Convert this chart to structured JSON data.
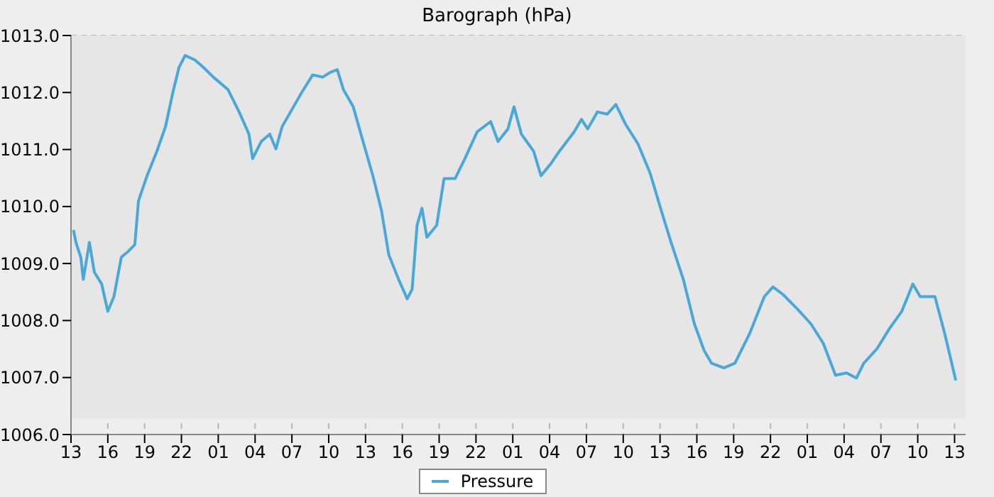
{
  "chart_data": {
    "type": "line",
    "title": "Barograph (hPa)",
    "x": [
      "--01-01T13:12",
      "--01-01T13:24",
      "--01-01T13:48",
      "--01-01T14:00",
      "--01-01T14:30",
      "--01-01T14:54",
      "--01-01T15:30",
      "--01-01T16:00",
      "--01-01T16:30",
      "--01-01T17:06",
      "--01-01T17:36",
      "--01-01T18:12",
      "--01-01T18:30",
      "--01-01T19:12",
      "--01-01T20:00",
      "--01-01T20:42",
      "--01-01T21:18",
      "--01-01T21:48",
      "--01-01T22:18",
      "--01-01T23:06",
      "--01-01T23:48",
      "--01-02T00:36",
      "--01-02T01:48",
      "--01-02T02:42",
      "--01-02T03:30",
      "--01-02T03:48",
      "--01-02T04:30",
      "--01-02T05:12",
      "--01-02T05:42",
      "--01-02T06:12",
      "--01-02T07:00",
      "--01-02T07:48",
      "--01-02T08:42",
      "--01-02T09:30",
      "--01-02T10:06",
      "--01-02T10:42",
      "--01-02T11:12",
      "--01-02T12:00",
      "--01-02T12:48",
      "--01-02T13:36",
      "--01-02T14:18",
      "--01-02T14:54",
      "--01-02T15:42",
      "--01-02T16:24",
      "--01-02T16:48",
      "--01-02T17:12",
      "--01-02T17:36",
      "--01-02T18:00",
      "--01-02T18:48",
      "--01-02T19:24",
      "--01-02T20:18",
      "--01-02T21:06",
      "--01-02T22:06",
      "--01-02T23:12",
      "--01-02T23:48",
      "--01-03T00:36",
      "--01-03T01:06",
      "--01-03T01:42",
      "--01-03T02:42",
      "--01-03T03:18",
      "--01-03T04:06",
      "--01-03T04:48",
      "--01-03T06:00",
      "--01-03T06:36",
      "--01-03T07:06",
      "--01-03T07:54",
      "--01-03T08:42",
      "--01-03T09:24",
      "--01-03T10:12",
      "--01-03T11:12",
      "--01-03T12:12",
      "--01-03T13:06",
      "--01-03T13:54",
      "--01-03T14:54",
      "--01-03T15:48",
      "--01-03T16:36",
      "--01-03T17:12",
      "--01-03T18:12",
      "--01-03T19:06",
      "--01-03T20:18",
      "--01-03T21:30",
      "--01-03T22:12",
      "--01-03T23:00",
      "--01-04T00:12",
      "--01-04T01:18",
      "--01-04T02:18",
      "--01-04T03:18",
      "--01-04T04:12",
      "--01-04T05:00",
      "--01-04T05:36",
      "--01-04T06:42",
      "--01-04T07:42",
      "--01-04T08:42",
      "--01-04T09:36",
      "--01-04T10:12",
      "--01-04T11:24",
      "--01-04T12:12",
      "--01-04T13:06"
    ],
    "series": [
      {
        "name": "Pressure",
        "color": "#4aa8d8",
        "values": [
          1009.59,
          1009.37,
          1009.11,
          1008.72,
          1009.37,
          1008.85,
          1008.64,
          1008.16,
          1008.42,
          1009.11,
          1009.2,
          1009.33,
          1010.1,
          1010.54,
          1010.97,
          1011.4,
          1012.0,
          1012.44,
          1012.65,
          1012.57,
          1012.44,
          1012.27,
          1012.05,
          1011.66,
          1011.27,
          1010.84,
          1011.14,
          1011.27,
          1011.01,
          1011.4,
          1011.7,
          1012.0,
          1012.31,
          1012.27,
          1012.35,
          1012.4,
          1012.05,
          1011.75,
          1011.14,
          1010.54,
          1009.93,
          1009.15,
          1008.72,
          1008.38,
          1008.55,
          1009.67,
          1009.97,
          1009.46,
          1009.67,
          1010.49,
          1010.49,
          1010.84,
          1011.31,
          1011.49,
          1011.14,
          1011.36,
          1011.75,
          1011.27,
          1010.97,
          1010.54,
          1010.75,
          1010.97,
          1011.31,
          1011.53,
          1011.36,
          1011.66,
          1011.62,
          1011.79,
          1011.44,
          1011.1,
          1010.58,
          1009.93,
          1009.37,
          1008.72,
          1007.94,
          1007.47,
          1007.25,
          1007.17,
          1007.25,
          1007.77,
          1008.42,
          1008.59,
          1008.46,
          1008.2,
          1007.94,
          1007.6,
          1007.04,
          1007.08,
          1006.99,
          1007.25,
          1007.51,
          1007.86,
          1008.16,
          1008.64,
          1008.42,
          1008.42,
          1007.77,
          1006.95
        ]
      }
    ],
    "xlim": [
      "--01-01T13:00",
      "--01-04T13:54"
    ],
    "xticks": [
      {
        "value": "--01-01T13:00",
        "label": "13"
      },
      {
        "value": "--01-01T16:00",
        "label": "16"
      },
      {
        "value": "--01-01T19:00",
        "label": "19"
      },
      {
        "value": "--01-01T22:00",
        "label": "22"
      },
      {
        "value": "--01-02T01:00",
        "label": "01"
      },
      {
        "value": "--01-02T04:00",
        "label": "04"
      },
      {
        "value": "--01-02T07:00",
        "label": "07"
      },
      {
        "value": "--01-02T10:00",
        "label": "10"
      },
      {
        "value": "--01-02T13:00",
        "label": "13"
      },
      {
        "value": "--01-02T16:00",
        "label": "16"
      },
      {
        "value": "--01-02T19:00",
        "label": "19"
      },
      {
        "value": "--01-02T22:00",
        "label": "22"
      },
      {
        "value": "--01-03T01:00",
        "label": "01"
      },
      {
        "value": "--01-03T04:00",
        "label": "04"
      },
      {
        "value": "--01-03T07:00",
        "label": "07"
      },
      {
        "value": "--01-03T10:00",
        "label": "10"
      },
      {
        "value": "--01-03T13:00",
        "label": "13"
      },
      {
        "value": "--01-03T16:00",
        "label": "16"
      },
      {
        "value": "--01-03T19:00",
        "label": "19"
      },
      {
        "value": "--01-03T22:00",
        "label": "22"
      },
      {
        "value": "--01-04T01:00",
        "label": "01"
      },
      {
        "value": "--01-04T04:00",
        "label": "04"
      },
      {
        "value": "--01-04T07:00",
        "label": "07"
      },
      {
        "value": "--01-04T10:00",
        "label": "10"
      },
      {
        "value": "--01-04T13:00",
        "label": "13"
      }
    ],
    "ylim": [
      1006,
      1013
    ],
    "yticks": [
      {
        "value": 1006,
        "label": "1006.0"
      },
      {
        "value": 1007,
        "label": "1007.0"
      },
      {
        "value": 1008,
        "label": "1008.0"
      },
      {
        "value": 1009,
        "label": "1009.0"
      },
      {
        "value": 1010,
        "label": "1010.0"
      },
      {
        "value": 1011,
        "label": "1011.0"
      },
      {
        "value": 1012,
        "label": "1012.0"
      },
      {
        "value": 1013,
        "label": "1013.0"
      }
    ],
    "grid": true,
    "legend": "bottom",
    "marker": "none",
    "line_style": "solid"
  }
}
